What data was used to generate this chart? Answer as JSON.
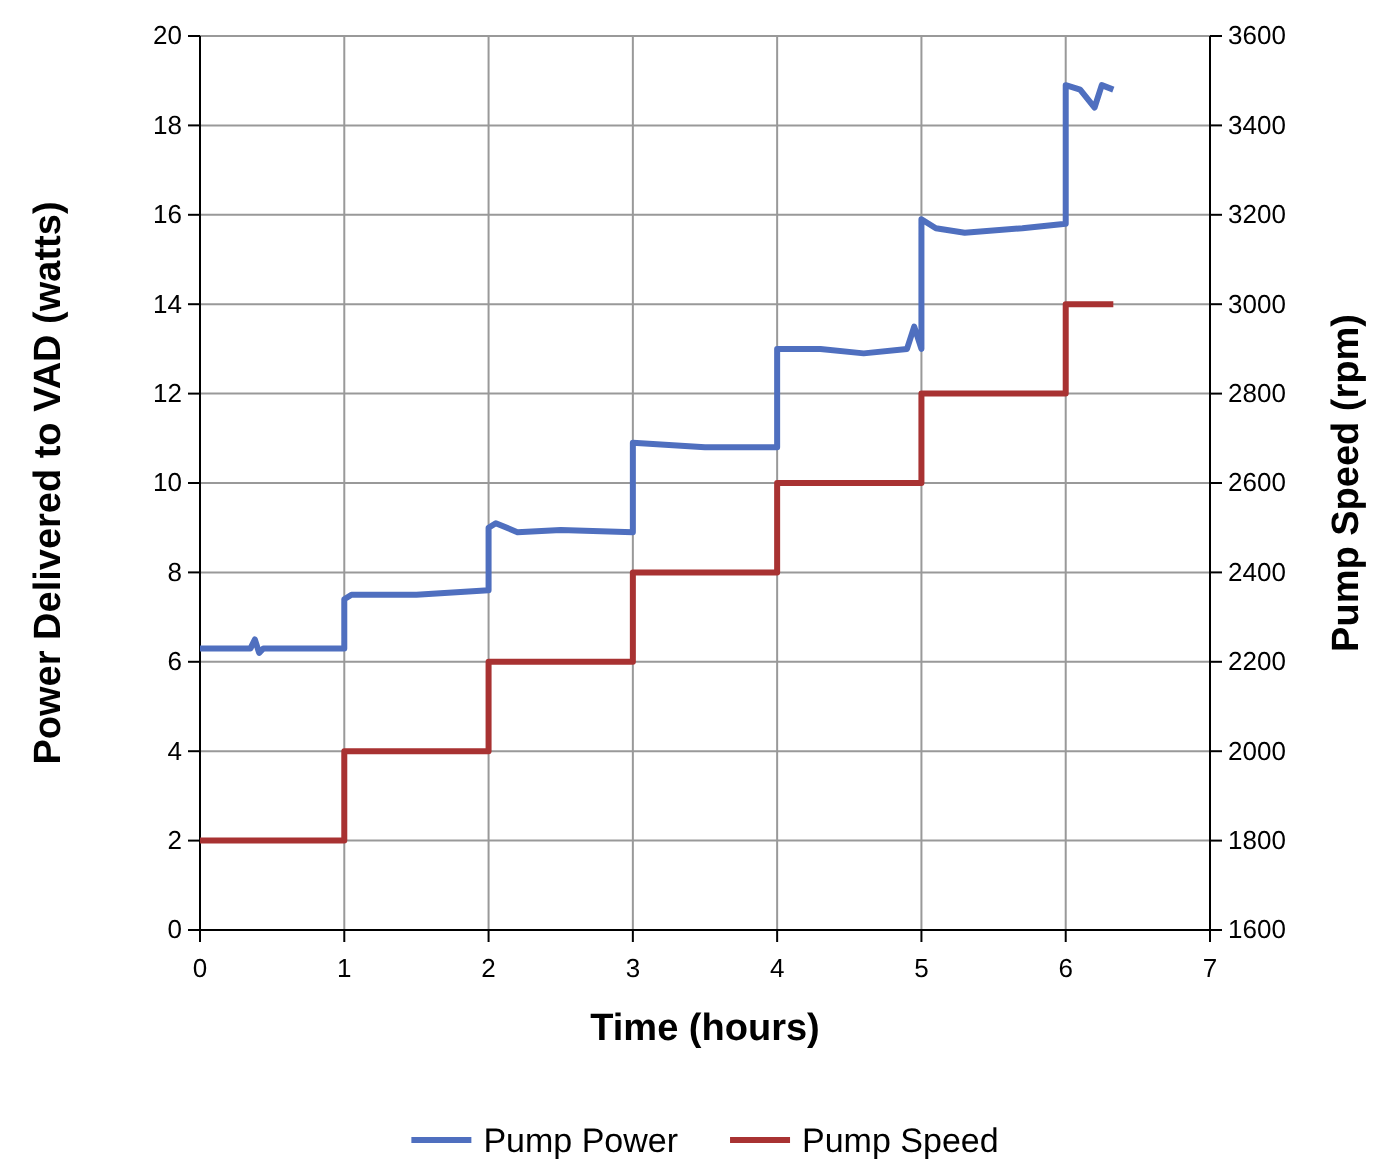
{
  "chart_data": {
    "type": "line",
    "xlabel": "Time (hours)",
    "ylabel": "Power Delivered to VAD (watts)",
    "y2label": "Pump Speed (rpm)",
    "xlim": [
      0,
      7
    ],
    "xticks": [
      0,
      1,
      2,
      3,
      4,
      5,
      6,
      7
    ],
    "ylim": [
      0,
      20
    ],
    "yticks": [
      0,
      2,
      4,
      6,
      8,
      10,
      12,
      14,
      16,
      18,
      20
    ],
    "y2lim": [
      1600,
      3600
    ],
    "y2ticks": [
      1600,
      1800,
      2000,
      2200,
      2400,
      2600,
      2800,
      3000,
      3200,
      3400,
      3600
    ],
    "grid": true,
    "legend": "bottom",
    "marker": "none",
    "line_style": "solid",
    "series": [
      {
        "name": "Pump Power",
        "color": "#4f6fbf",
        "x": [
          0,
          0.35,
          0.38,
          0.41,
          0.44,
          1.0,
          1.0,
          1.05,
          1.5,
          2.0,
          2.0,
          2.05,
          2.2,
          2.5,
          3.0,
          3.0,
          3.5,
          4.0,
          4.0,
          4.3,
          4.6,
          4.9,
          4.95,
          5.0,
          5.0,
          5.1,
          5.3,
          5.7,
          6.0,
          6.0,
          6.1,
          6.2,
          6.25,
          6.33
        ],
        "values": [
          6.3,
          6.3,
          6.5,
          6.2,
          6.3,
          6.3,
          7.4,
          7.5,
          7.5,
          7.6,
          9.0,
          9.1,
          8.9,
          8.95,
          8.9,
          10.9,
          10.8,
          10.8,
          13.0,
          13.0,
          12.9,
          13.0,
          13.5,
          13.0,
          15.9,
          15.7,
          15.6,
          15.7,
          15.8,
          18.9,
          18.8,
          18.4,
          18.9,
          18.8
        ]
      },
      {
        "name": "Pump Speed",
        "color": "#a83232",
        "type": "step",
        "axis": "y2",
        "x": [
          0,
          1,
          2,
          3,
          4,
          5,
          6,
          6.33
        ],
        "values": [
          1800,
          2000,
          2200,
          2400,
          2600,
          2800,
          3000,
          3000
        ]
      }
    ]
  }
}
